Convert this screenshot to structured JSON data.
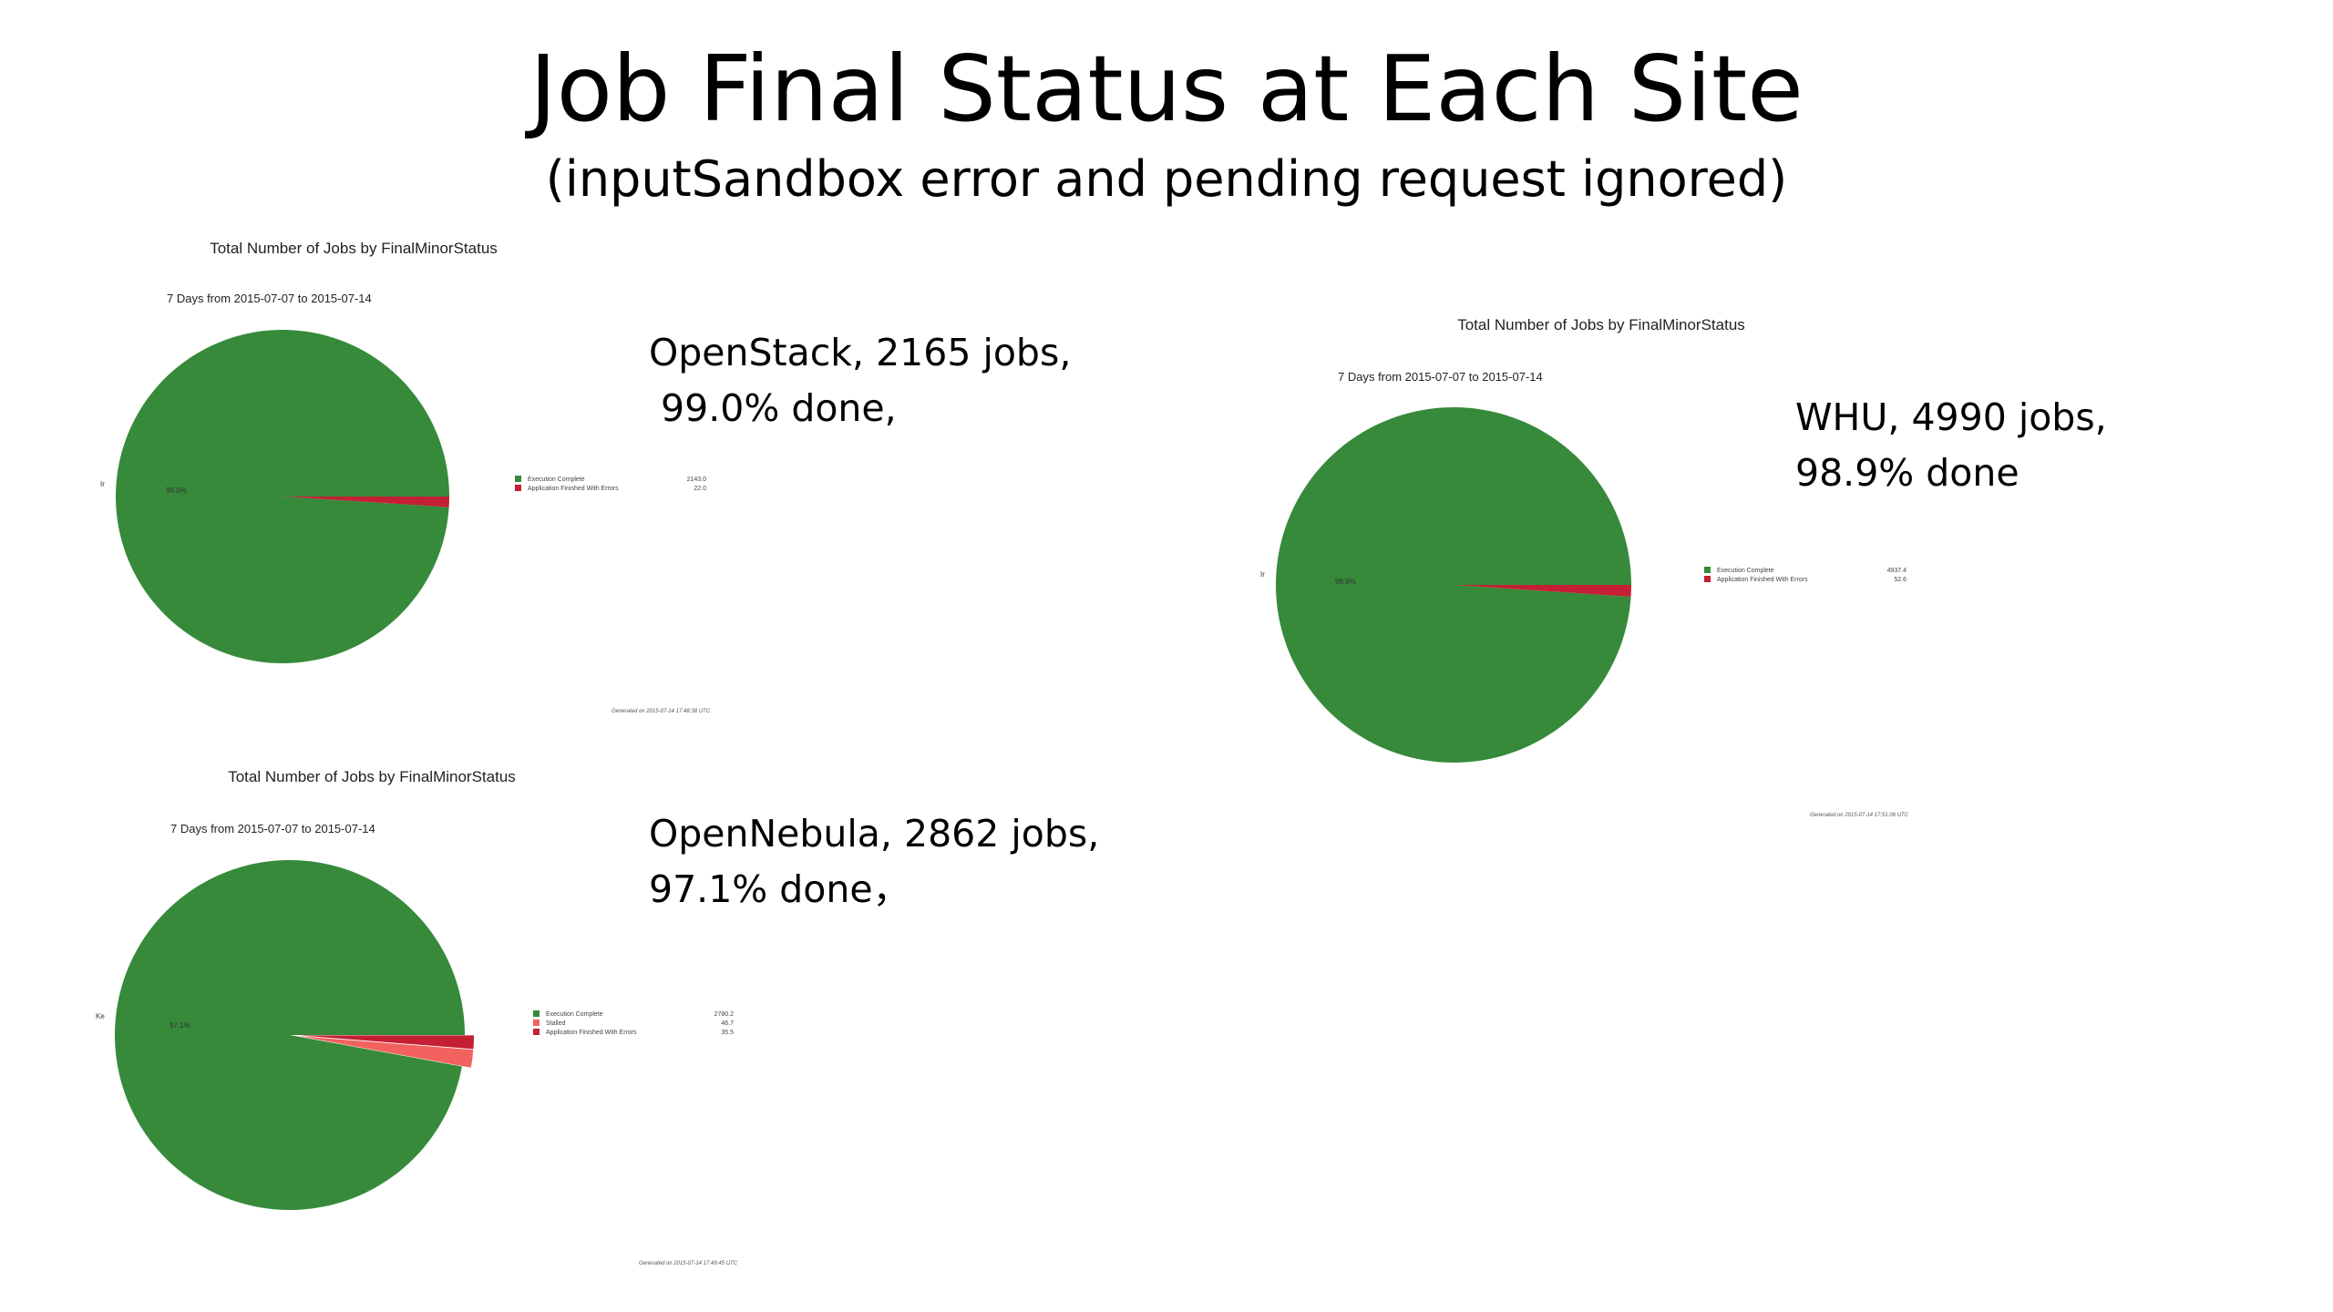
{
  "slide": {
    "title": "Job Final Status at Each Site",
    "subtitle": "(inputSandbox error and pending request ignored)"
  },
  "colors": {
    "Execution Complete": "#368a3a",
    "Stalled": "#f2625f",
    "Application Finished With Errors": "#c41f34"
  },
  "captions": [
    {
      "line1": "OpenStack, 2165 jobs,",
      "line2": " 99.0% done,"
    },
    {
      "line1": "WHU, 4990 jobs,",
      "line2": "98.9% done"
    },
    {
      "line1": "OpenNebula, 2862 jobs,",
      "line2": "97.1% done，"
    }
  ],
  "chart_data": [
    {
      "type": "pie",
      "title": "Total Number of Jobs by FinalMinorStatus",
      "subtitle": "7 Days from 2015-07-07 to 2015-07-14",
      "ylabel": "Ir",
      "slice_label": "99.0%",
      "footer": "Generated on 2015-07-14 17:48:38 UTC",
      "slices": [
        {
          "name": "Execution Complete",
          "value": 2143.0,
          "label": "2143.0"
        },
        {
          "name": "Application Finished With Errors",
          "value": 22.0,
          "label": "22.0"
        }
      ]
    },
    {
      "type": "pie",
      "title": "Total Number of Jobs by FinalMinorStatus",
      "subtitle": "7 Days from 2015-07-07 to 2015-07-14",
      "ylabel": "Ir",
      "slice_label": "98.9%",
      "footer": "Generated on 2015-07-14 17:51:06 UTC",
      "slices": [
        {
          "name": "Execution Complete",
          "value": 4937.4,
          "label": "4937.4"
        },
        {
          "name": "Application Finished With Errors",
          "value": 52.6,
          "label": "52.6"
        }
      ]
    },
    {
      "type": "pie",
      "title": "Total Number of Jobs by FinalMinorStatus",
      "subtitle": "7 Days from 2015-07-07 to 2015-07-14",
      "ylabel": "Ke",
      "slice_label": "97.1%",
      "footer": "Generated on 2015-07-14 17:49:45 UTC",
      "slices": [
        {
          "name": "Execution Complete",
          "value": 2780.2,
          "label": "2780.2"
        },
        {
          "name": "Stalled",
          "value": 46.7,
          "label": "46.7"
        },
        {
          "name": "Application Finished With Errors",
          "value": 35.5,
          "label": "35.5"
        }
      ]
    }
  ]
}
